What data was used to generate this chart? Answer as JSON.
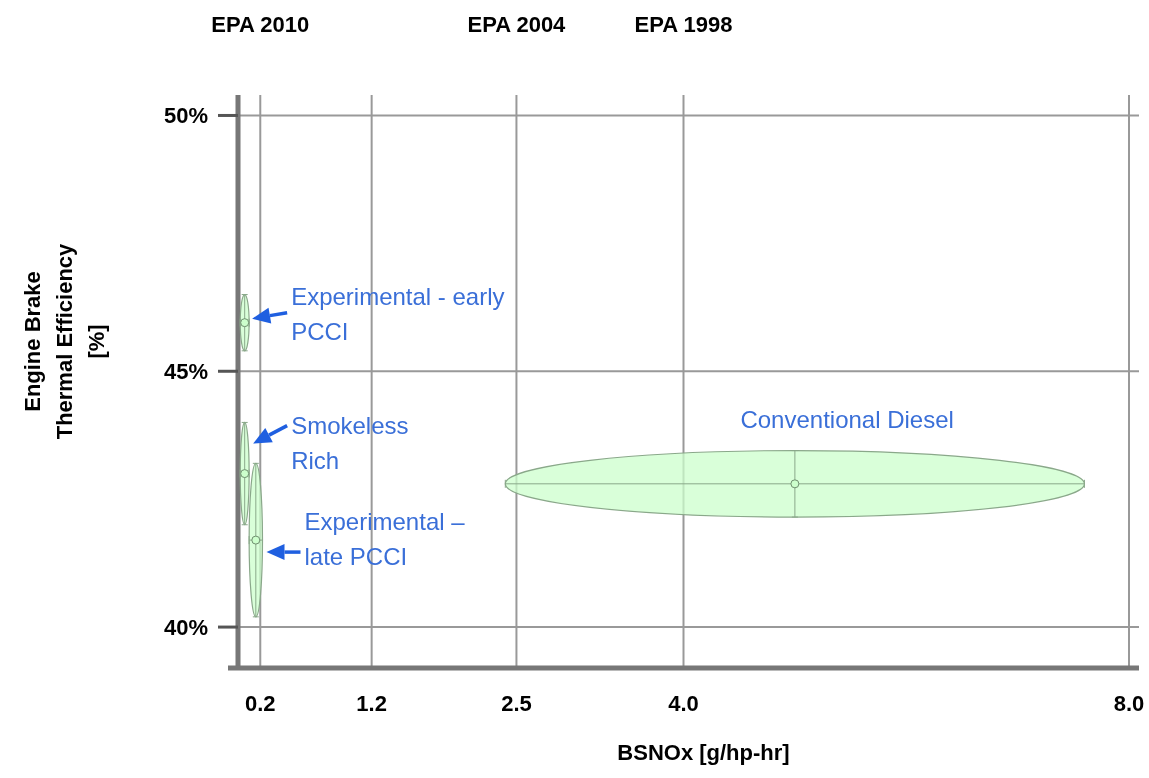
{
  "chart_data": {
    "type": "scatter",
    "xlabel": "BSNOx [g/hp-hr]",
    "ylabel": "Engine Brake Thermal Efficiency [%]",
    "xlim": [
      0,
      8.0
    ],
    "xticks": [
      {
        "value": 0.2,
        "label": "0.2"
      },
      {
        "value": 1.2,
        "label": "1.2"
      },
      {
        "value": 2.5,
        "label": "2.5"
      },
      {
        "value": 4.0,
        "label": "4.0"
      },
      {
        "value": 8.0,
        "label": "8.0"
      }
    ],
    "ylim": [
      39.2,
      50.4
    ],
    "yticks": [
      {
        "value": 40,
        "label": "40%"
      },
      {
        "value": 45,
        "label": "45%"
      },
      {
        "value": 50,
        "label": "50%"
      }
    ],
    "grid": true,
    "marker": "circle",
    "annotations": [
      "EPA 2010",
      "EPA 2004",
      "EPA 1998"
    ],
    "series": [
      {
        "name": "Experimental - early PCCI",
        "color": "#ccffcc",
        "x": [
          0.06
        ],
        "values": [
          45.95
        ],
        "xerrors": [
          0.04
        ],
        "errors": [
          0.55
        ]
      },
      {
        "name": "Smokeless Rich",
        "color": "#ccffcc",
        "x": [
          0.06
        ],
        "values": [
          43.0
        ],
        "xerrors": [
          0.04
        ],
        "errors": [
          1.0
        ]
      },
      {
        "name": "Experimental – late PCCI",
        "color": "#ccffcc",
        "x": [
          0.16
        ],
        "values": [
          41.7
        ],
        "xerrors": [
          0.06
        ],
        "errors": [
          1.5
        ]
      },
      {
        "name": "Conventional Diesel",
        "color": "#ccffcc",
        "x": [
          5.0
        ],
        "values": [
          42.8
        ],
        "xerrors": [
          2.6
        ],
        "errors": [
          0.65
        ]
      }
    ]
  }
}
